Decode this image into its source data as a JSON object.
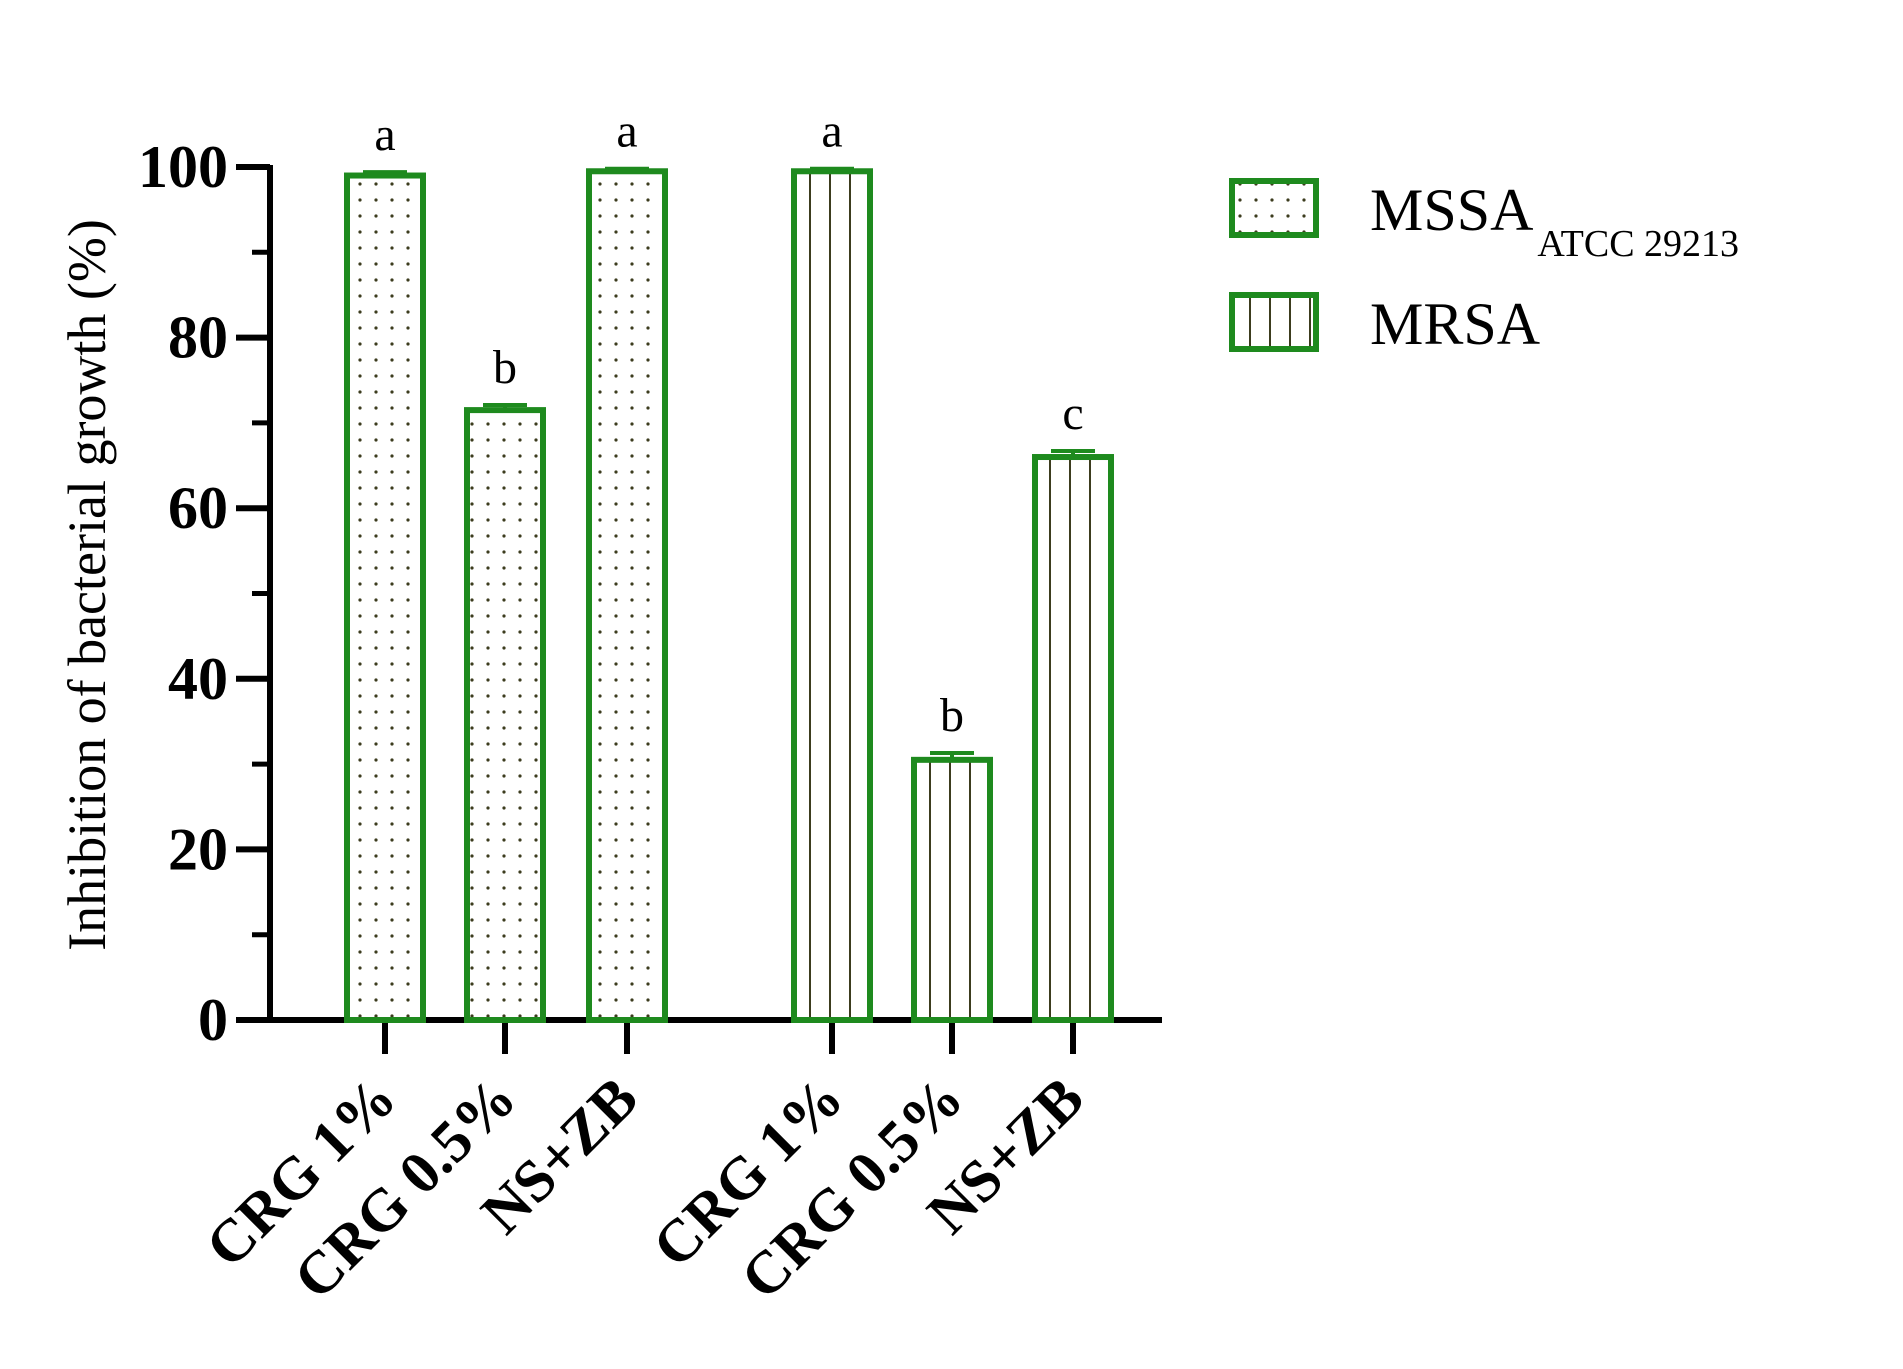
{
  "chart_data": {
    "type": "bar",
    "ylabel": "Inhibition of bacterial growth (%)",
    "ylim": [
      0,
      100
    ],
    "yticks": [
      0,
      20,
      40,
      60,
      80,
      100
    ],
    "categories": [
      "CRG 1%",
      "CRG 0.5%",
      "NS+ZB"
    ],
    "series": [
      {
        "name": "MSSA",
        "name_subscript": "ATCC 29213",
        "pattern": "dots",
        "values": [
          99,
          71.5,
          99.5
        ],
        "errors": [
          0.4,
          0.6,
          0.3
        ],
        "significance": [
          "a",
          "b",
          "a"
        ]
      },
      {
        "name": "MRSA",
        "pattern": "vertical-lines",
        "values": [
          99.5,
          30.5,
          66
        ],
        "errors": [
          0.3,
          0.8,
          0.7
        ],
        "significance": [
          "a",
          "b",
          "c"
        ]
      }
    ],
    "legend_position": "top-right",
    "grid": false,
    "colors": {
      "edge": "#1e8a1e",
      "pattern": "#3c3c1e",
      "axis": "#000000"
    }
  }
}
